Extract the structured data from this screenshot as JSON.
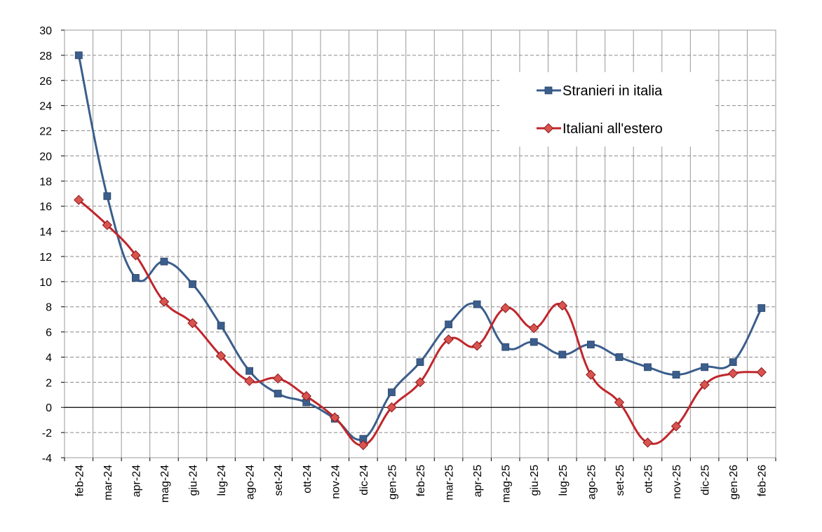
{
  "chart_data": {
    "type": "line",
    "title": "",
    "xlabel": "",
    "ylabel": "",
    "ylim": [
      -4,
      30
    ],
    "ytick_step": 2,
    "grid": true,
    "legend_position": "top-right",
    "categories": [
      "feb-24",
      "mar-24",
      "apr-24",
      "mag-24",
      "giu-24",
      "lug-24",
      "ago-24",
      "set-24",
      "ott-24",
      "nov-24",
      "dic-24",
      "gen-25",
      "feb-25",
      "mar-25",
      "apr-25",
      "mag-25",
      "giu-25",
      "lug-25",
      "ago-25",
      "set-25",
      "ott-25",
      "nov-25",
      "dic-25",
      "gen-26",
      "feb-26"
    ],
    "series": [
      {
        "name": "Stranieri in italia",
        "color": "#3b5e8c",
        "marker": "square",
        "values": [
          28.0,
          16.8,
          10.3,
          11.6,
          9.8,
          6.5,
          2.9,
          1.1,
          0.4,
          -0.9,
          -2.5,
          1.2,
          3.6,
          6.6,
          8.2,
          4.8,
          5.2,
          4.2,
          5.0,
          4.0,
          3.2,
          2.6,
          3.2,
          3.6,
          7.9
        ]
      },
      {
        "name": "Italiani all'estero",
        "color": "#c0262b",
        "marker": "diamond",
        "values": [
          16.5,
          14.5,
          12.1,
          8.4,
          6.7,
          4.1,
          2.1,
          2.3,
          0.9,
          -0.8,
          -3.0,
          0.0,
          2.0,
          5.4,
          4.9,
          7.9,
          6.3,
          8.1,
          2.6,
          0.4,
          -2.8,
          -1.5,
          1.8,
          2.7,
          2.8
        ]
      }
    ]
  }
}
